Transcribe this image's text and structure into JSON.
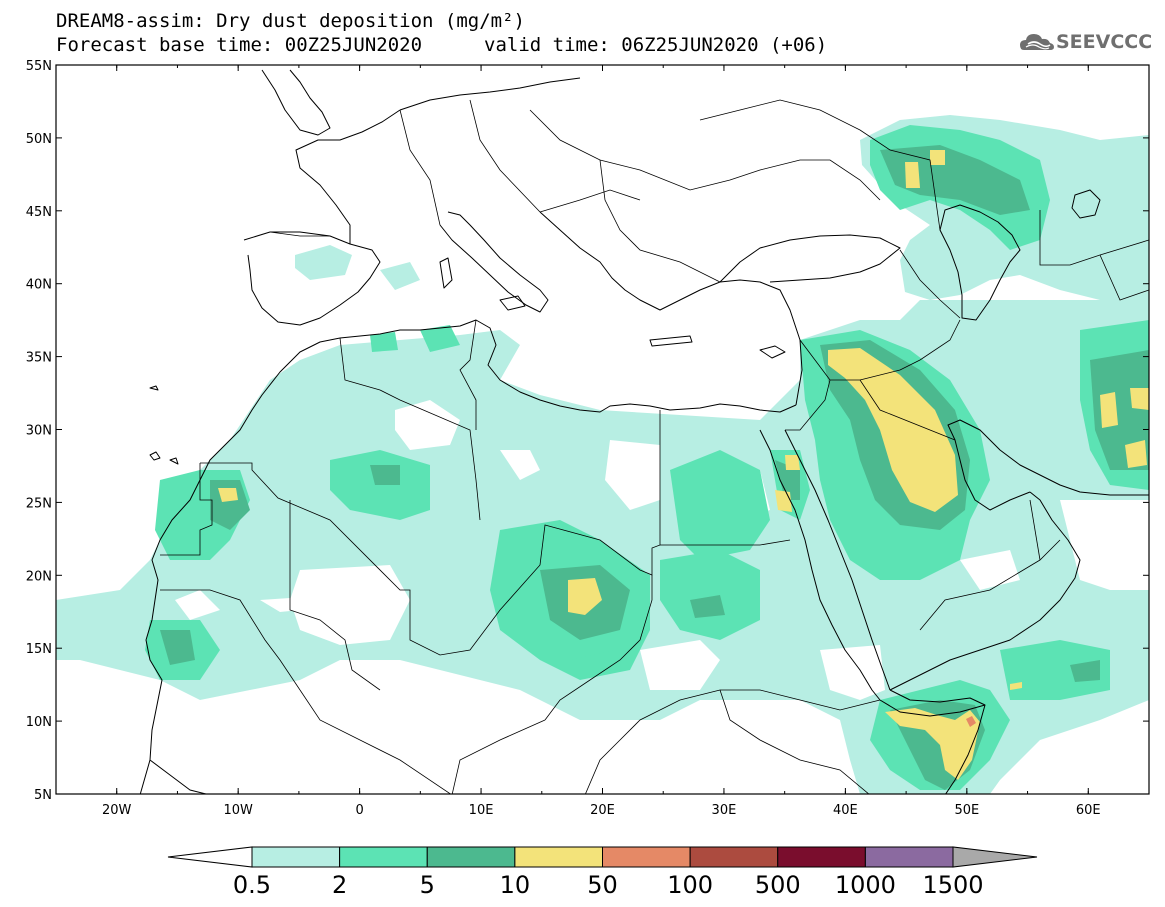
{
  "title": {
    "line1": "DREAM8-assim: Dry dust deposition (mg/m²)",
    "line2a": "Forecast base time: 00Z25JUN2020",
    "line2b": "valid time: 06Z25JUN2020 (+06)"
  },
  "logo": {
    "text": "SEEVCCC",
    "icon": "cloud-logo-icon"
  },
  "map": {
    "lon_range": [
      -25,
      65
    ],
    "lat_range": [
      5,
      55
    ],
    "lat_ticks": [
      {
        "v": 55,
        "label": "55N"
      },
      {
        "v": 50,
        "label": "50N"
      },
      {
        "v": 45,
        "label": "45N"
      },
      {
        "v": 40,
        "label": "40N"
      },
      {
        "v": 35,
        "label": "35N"
      },
      {
        "v": 30,
        "label": "30N"
      },
      {
        "v": 25,
        "label": "25N"
      },
      {
        "v": 20,
        "label": "20N"
      },
      {
        "v": 15,
        "label": "15N"
      },
      {
        "v": 10,
        "label": "10N"
      },
      {
        "v": 5,
        "label": "5N"
      }
    ],
    "lon_ticks": [
      {
        "v": -20,
        "label": "20W"
      },
      {
        "v": -10,
        "label": "10W"
      },
      {
        "v": 0,
        "label": "0"
      },
      {
        "v": 10,
        "label": "10E"
      },
      {
        "v": 20,
        "label": "20E"
      },
      {
        "v": 30,
        "label": "30E"
      },
      {
        "v": 40,
        "label": "40E"
      },
      {
        "v": 50,
        "label": "50E"
      },
      {
        "v": 60,
        "label": "60E"
      }
    ]
  },
  "colorbar": {
    "labels": [
      "0.5",
      "2",
      "5",
      "10",
      "50",
      "100",
      "500",
      "1000",
      "1500"
    ],
    "colors": [
      "#b7eee3",
      "#5ce3b4",
      "#4cb98f",
      "#f3e37a",
      "#e58966",
      "#ac4b3f",
      "#7a0d2d",
      "#8b6aa0"
    ],
    "under_color": "#ffffff",
    "over_color": "#a9a9a9"
  },
  "shading": {
    "light": "#b7eee3",
    "mid": "#5ce3b4",
    "dark": "#4cb98f",
    "yellow": "#f3e37a",
    "salmon": "#e58966"
  }
}
